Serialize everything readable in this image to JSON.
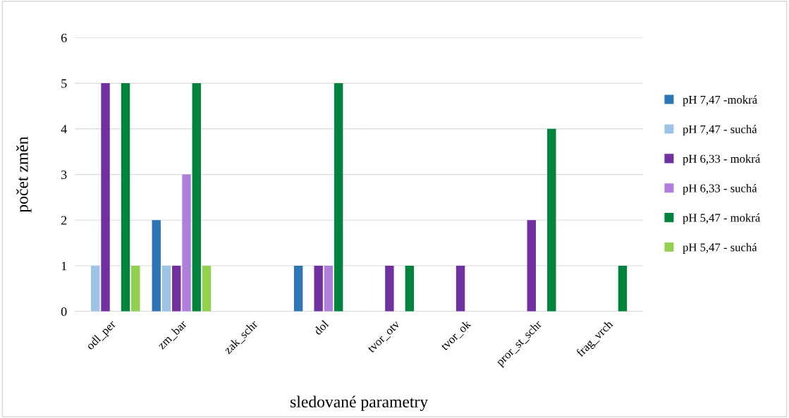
{
  "chart_data": {
    "type": "bar",
    "xlabel": "sledované parametry",
    "ylabel": "počet změn",
    "categories": [
      "odl_per",
      "zm_bar",
      "zak_schr",
      "dol",
      "tvor_otv",
      "tvor_ok",
      "pror_st_schr",
      "frag_vrch"
    ],
    "series": [
      {
        "name": "pH 7,47 -mokrá",
        "color": "#2e75b6",
        "values": [
          0,
          2,
          0,
          1,
          0,
          0,
          0,
          0
        ]
      },
      {
        "name": "pH 7,47 - suchá",
        "color": "#9dc3e6",
        "values": [
          1,
          1,
          0,
          0,
          0,
          0,
          0,
          0
        ]
      },
      {
        "name": "pH 6,33 - mokrá",
        "color": "#7030a0",
        "values": [
          5,
          1,
          0,
          1,
          1,
          1,
          2,
          0
        ]
      },
      {
        "name": "pH 6,33 - suchá",
        "color": "#b07fdc",
        "values": [
          0,
          3,
          0,
          1,
          0,
          0,
          0,
          0
        ]
      },
      {
        "name": "pH 5,47 - mokrá",
        "color": "#00843d",
        "values": [
          5,
          5,
          0,
          5,
          1,
          0,
          4,
          1
        ]
      },
      {
        "name": "pH 5,47 - suchá",
        "color": "#92d050",
        "values": [
          1,
          1,
          0,
          0,
          0,
          0,
          0,
          0
        ]
      }
    ],
    "ylim": [
      0,
      6
    ],
    "yticks": [
      0,
      1,
      2,
      3,
      4,
      5,
      6
    ],
    "grid": "y",
    "legend": "right"
  }
}
